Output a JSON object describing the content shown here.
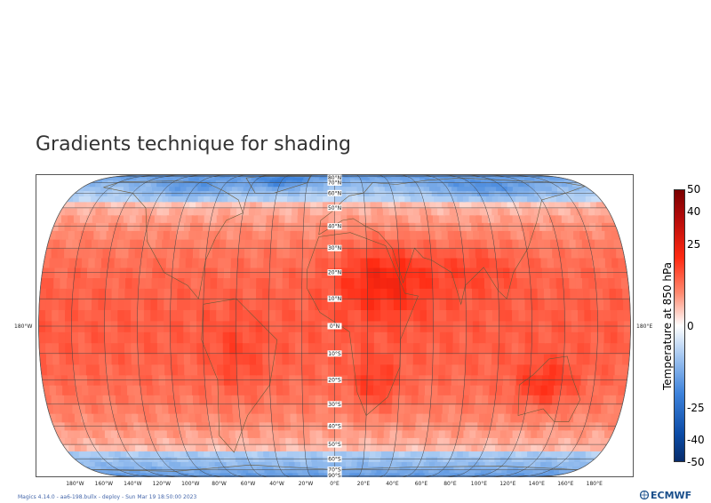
{
  "title": "Gradients technique for shading",
  "map": {
    "projection": "Robinson",
    "lat_labels": [
      "90°N",
      "80°N",
      "70°N",
      "60°N",
      "50°N",
      "40°N",
      "30°N",
      "20°N",
      "10°N",
      "0°N",
      "10°S",
      "20°S",
      "30°S",
      "40°S",
      "50°S",
      "60°S",
      "70°S",
      "80°S",
      "90°S"
    ],
    "lon_labels": [
      "180°W",
      "160°W",
      "140°W",
      "120°W",
      "100°W",
      "80°W",
      "60°W",
      "40°W",
      "20°W",
      "0°E",
      "20°E",
      "40°E",
      "60°E",
      "80°E",
      "100°E",
      "120°E",
      "140°E",
      "160°E",
      "180°E"
    ],
    "left_edge_label": "180°W",
    "right_edge_label": "180°E",
    "colors": {
      "cold": "#0a4fa8",
      "cool": "#6fa4e6",
      "neutral": "#f8f8f8",
      "warm": "#ff3b1e",
      "hot": "#8b0a0a",
      "coast": "#6b5a3a",
      "grid": "#444444"
    }
  },
  "colorbar": {
    "title": "Temperature at 850 hPa",
    "tick_labels": [
      "50",
      "40",
      "25",
      "0",
      "-25",
      "-40",
      "-50"
    ],
    "ticks": [
      50,
      40,
      25,
      0,
      -25,
      -40,
      -50
    ],
    "range": [
      -50,
      50
    ],
    "stops": [
      {
        "v": 50,
        "c": "#7a0000"
      },
      {
        "v": 40,
        "c": "#b20a0a"
      },
      {
        "v": 25,
        "c": "#ff2a12"
      },
      {
        "v": 12,
        "c": "#ff8a70"
      },
      {
        "v": 0,
        "c": "#ffffff"
      },
      {
        "v": -12,
        "c": "#9ec3f0"
      },
      {
        "v": -25,
        "c": "#3d82db"
      },
      {
        "v": -40,
        "c": "#0b4ba6"
      },
      {
        "v": -50,
        "c": "#072c6b"
      }
    ]
  },
  "footer": "Magics 4.14.0 - aa6-198.bullx - deploy - Sun Mar 19 18:50:00 2023",
  "logo": "ECMWF"
}
